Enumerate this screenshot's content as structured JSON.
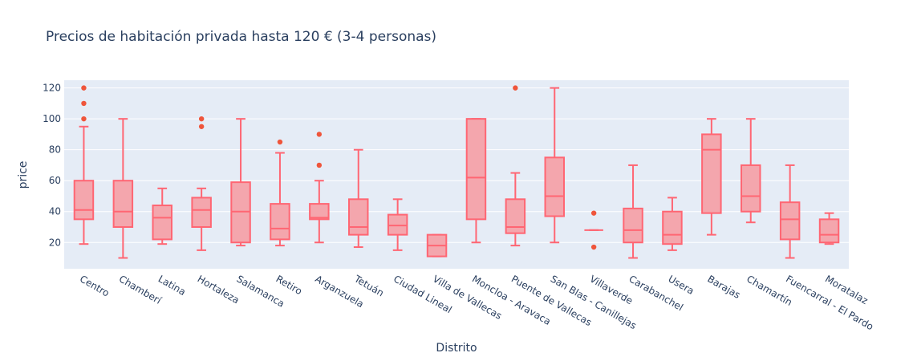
{
  "chart_data": {
    "type": "box",
    "title": "Precios de habitación privada hasta 120 € (3-4 personas)",
    "xlabel": "Distrito",
    "ylabel": "price",
    "ylim": [
      3,
      125
    ],
    "yticks": [
      20,
      40,
      60,
      80,
      100,
      120
    ],
    "grid": true,
    "color": "#ef553b",
    "box_color": "#ff6673",
    "fill_color": "#f4a6ad",
    "plot_background": "#e5ecf6",
    "categories": [
      "Centro",
      "Chamberí",
      "Latina",
      "Hortaleza",
      "Salamanca",
      "Retiro",
      "Arganzuela",
      "Tetuán",
      "Ciudad Lineal",
      "Villa de Vallecas",
      "Moncloa - Aravaca",
      "Puente de Vallecas",
      "San Blas - Canillejas",
      "Villaverde",
      "Carabanchel",
      "Usera",
      "Barajas",
      "Chamartín",
      "Fuencarral - El Pardo",
      "Moratalaz"
    ],
    "boxes": [
      {
        "min": 19,
        "q1": 35,
        "median": 41,
        "q3": 60,
        "max": 95,
        "outliers": [
          100,
          110,
          120
        ]
      },
      {
        "min": 10,
        "q1": 30,
        "median": 40,
        "q3": 60,
        "max": 100,
        "outliers": []
      },
      {
        "min": 19,
        "q1": 22,
        "median": 36,
        "q3": 44,
        "max": 55,
        "outliers": []
      },
      {
        "min": 15,
        "q1": 30,
        "median": 41,
        "q3": 49,
        "max": 55,
        "outliers": [
          95,
          100
        ]
      },
      {
        "min": 18,
        "q1": 20,
        "median": 40,
        "q3": 59,
        "max": 100,
        "outliers": []
      },
      {
        "min": 18,
        "q1": 22,
        "median": 29,
        "q3": 45,
        "max": 78,
        "outliers": [
          85
        ]
      },
      {
        "min": 20,
        "q1": 35,
        "median": 36,
        "q3": 45,
        "max": 60,
        "outliers": [
          70,
          90
        ]
      },
      {
        "min": 17,
        "q1": 25,
        "median": 30,
        "q3": 48,
        "max": 80,
        "outliers": []
      },
      {
        "min": 15,
        "q1": 25,
        "median": 31,
        "q3": 38,
        "max": 48,
        "outliers": []
      },
      {
        "min": 11,
        "q1": 11,
        "median": 18,
        "q3": 25,
        "max": 25,
        "outliers": []
      },
      {
        "min": 20,
        "q1": 35,
        "median": 62,
        "q3": 100,
        "max": 100,
        "outliers": []
      },
      {
        "min": 18,
        "q1": 26,
        "median": 30,
        "q3": 48,
        "max": 65,
        "outliers": [
          120
        ]
      },
      {
        "min": 20,
        "q1": 37,
        "median": 50,
        "q3": 75,
        "max": 120,
        "outliers": []
      },
      {
        "min": 28,
        "q1": 28,
        "median": 28,
        "q3": 28,
        "max": 28,
        "outliers": [
          17,
          39
        ]
      },
      {
        "min": 10,
        "q1": 20,
        "median": 28,
        "q3": 42,
        "max": 70,
        "outliers": []
      },
      {
        "min": 15,
        "q1": 19,
        "median": 25,
        "q3": 40,
        "max": 49,
        "outliers": []
      },
      {
        "min": 25,
        "q1": 39,
        "median": 80,
        "q3": 90,
        "max": 100,
        "outliers": []
      },
      {
        "min": 33,
        "q1": 40,
        "median": 50,
        "q3": 70,
        "max": 100,
        "outliers": []
      },
      {
        "min": 10,
        "q1": 22,
        "median": 35,
        "q3": 46,
        "max": 70,
        "outliers": []
      },
      {
        "min": 19,
        "q1": 20,
        "median": 25,
        "q3": 35,
        "max": 39,
        "outliers": []
      }
    ]
  }
}
